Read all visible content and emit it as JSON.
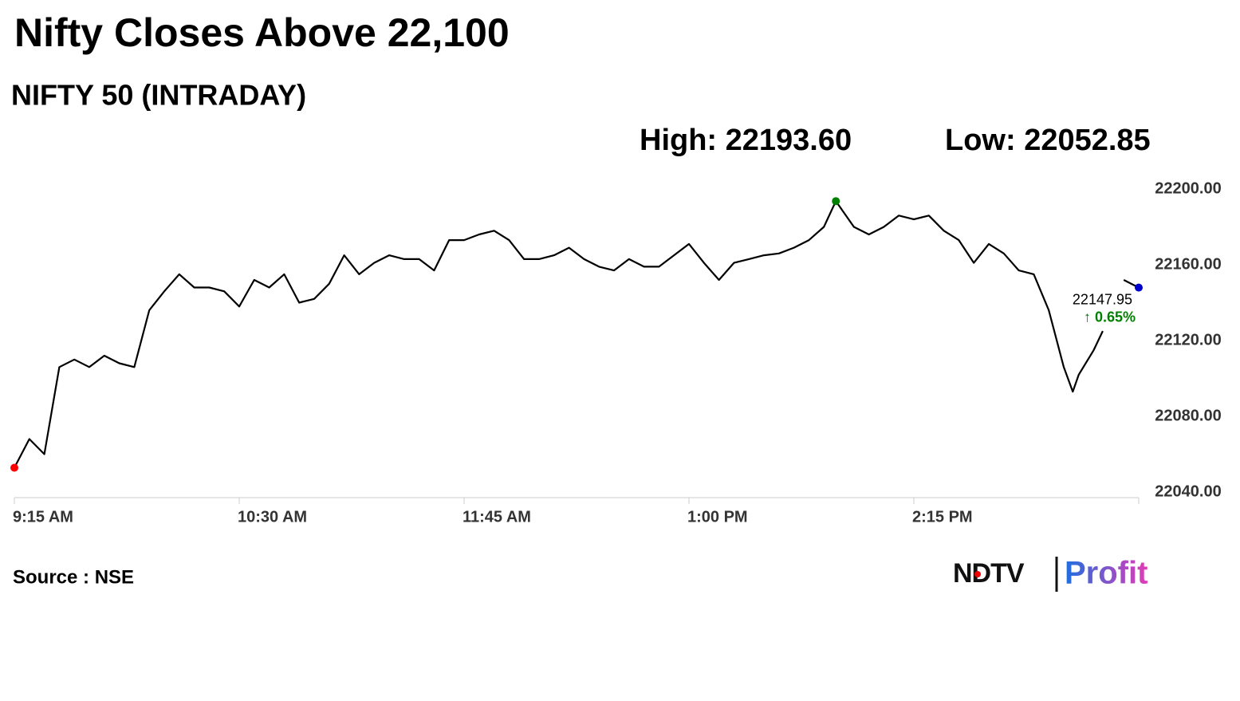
{
  "chart_data": {
    "type": "line",
    "title": "Nifty Closes Above 22,100",
    "subtitle": "NIFTY 50 (INTRADAY)",
    "high_label": "High: 22193.60",
    "low_label": "Low: 22052.85",
    "source": "Source : NSE",
    "logo": [
      "NDTV",
      "Profit"
    ],
    "xlim": [
      555,
      930
    ],
    "xticks": [
      {
        "value": 555,
        "label": "9:15 AM"
      },
      {
        "value": 630,
        "label": "10:30 AM"
      },
      {
        "value": 705,
        "label": "11:45 AM"
      },
      {
        "value": 780,
        "label": "1:00 PM"
      },
      {
        "value": 855,
        "label": "2:15 PM"
      },
      {
        "value": 930,
        "label": ""
      }
    ],
    "ylim": [
      22040,
      22200
    ],
    "yticks": [
      {
        "value": 22040,
        "label": "22040.00"
      },
      {
        "value": 22080,
        "label": "22080.00"
      },
      {
        "value": 22120,
        "label": "22120.00"
      },
      {
        "value": 22160,
        "label": "22160.00"
      },
      {
        "value": 22200,
        "label": "22200.00"
      }
    ],
    "x": [
      555,
      560,
      565,
      570,
      575,
      580,
      585,
      590,
      595,
      600,
      605,
      610,
      615,
      620,
      625,
      630,
      635,
      640,
      645,
      650,
      655,
      660,
      665,
      670,
      675,
      680,
      685,
      690,
      695,
      700,
      705,
      710,
      715,
      720,
      725,
      730,
      735,
      740,
      745,
      750,
      755,
      760,
      765,
      770,
      775,
      780,
      785,
      790,
      795,
      800,
      805,
      810,
      815,
      820,
      825,
      829,
      835,
      840,
      845,
      850,
      855,
      860,
      865,
      870,
      875,
      880,
      885,
      890,
      895,
      900,
      905,
      908,
      910,
      915,
      918,
      920,
      925,
      930
    ],
    "series": [
      {
        "name": "NIFTY 50",
        "color": "#000000",
        "values": [
          22052.85,
          22068,
          22060,
          22106,
          22110,
          22106,
          22112,
          22108,
          22106,
          22136,
          22146,
          22155,
          22148,
          22148,
          22146,
          22138,
          22152,
          22148,
          22155,
          22140,
          22142,
          22150,
          22165,
          22155,
          22161,
          22165,
          22163,
          22163,
          22157,
          22173,
          22173,
          22176,
          22178,
          22173,
          22163,
          22163,
          22165,
          22169,
          22163,
          22159,
          22157,
          22163,
          22159,
          22159,
          22165,
          22171,
          22161,
          22152,
          22161,
          22163,
          22165,
          22166,
          22169,
          22173,
          22180,
          22193.6,
          22180,
          22176,
          22180,
          22186,
          22184,
          22186,
          22178,
          22173,
          22161,
          22171,
          22166,
          22157,
          22155,
          22136,
          22106,
          22093,
          22102,
          22115,
          22125,
          null,
          22152,
          22147.95
        ]
      }
    ],
    "high": {
      "x": 829,
      "y": 22193.6,
      "color": "#008000"
    },
    "low": {
      "x": 555,
      "y": 22052.85,
      "color": "#ff0000"
    },
    "close": {
      "x": 930,
      "y": 22147.95,
      "color": "#0000cc",
      "change": 0.65,
      "change_label": "↑ 0.65%",
      "change_color": "#008000"
    }
  }
}
